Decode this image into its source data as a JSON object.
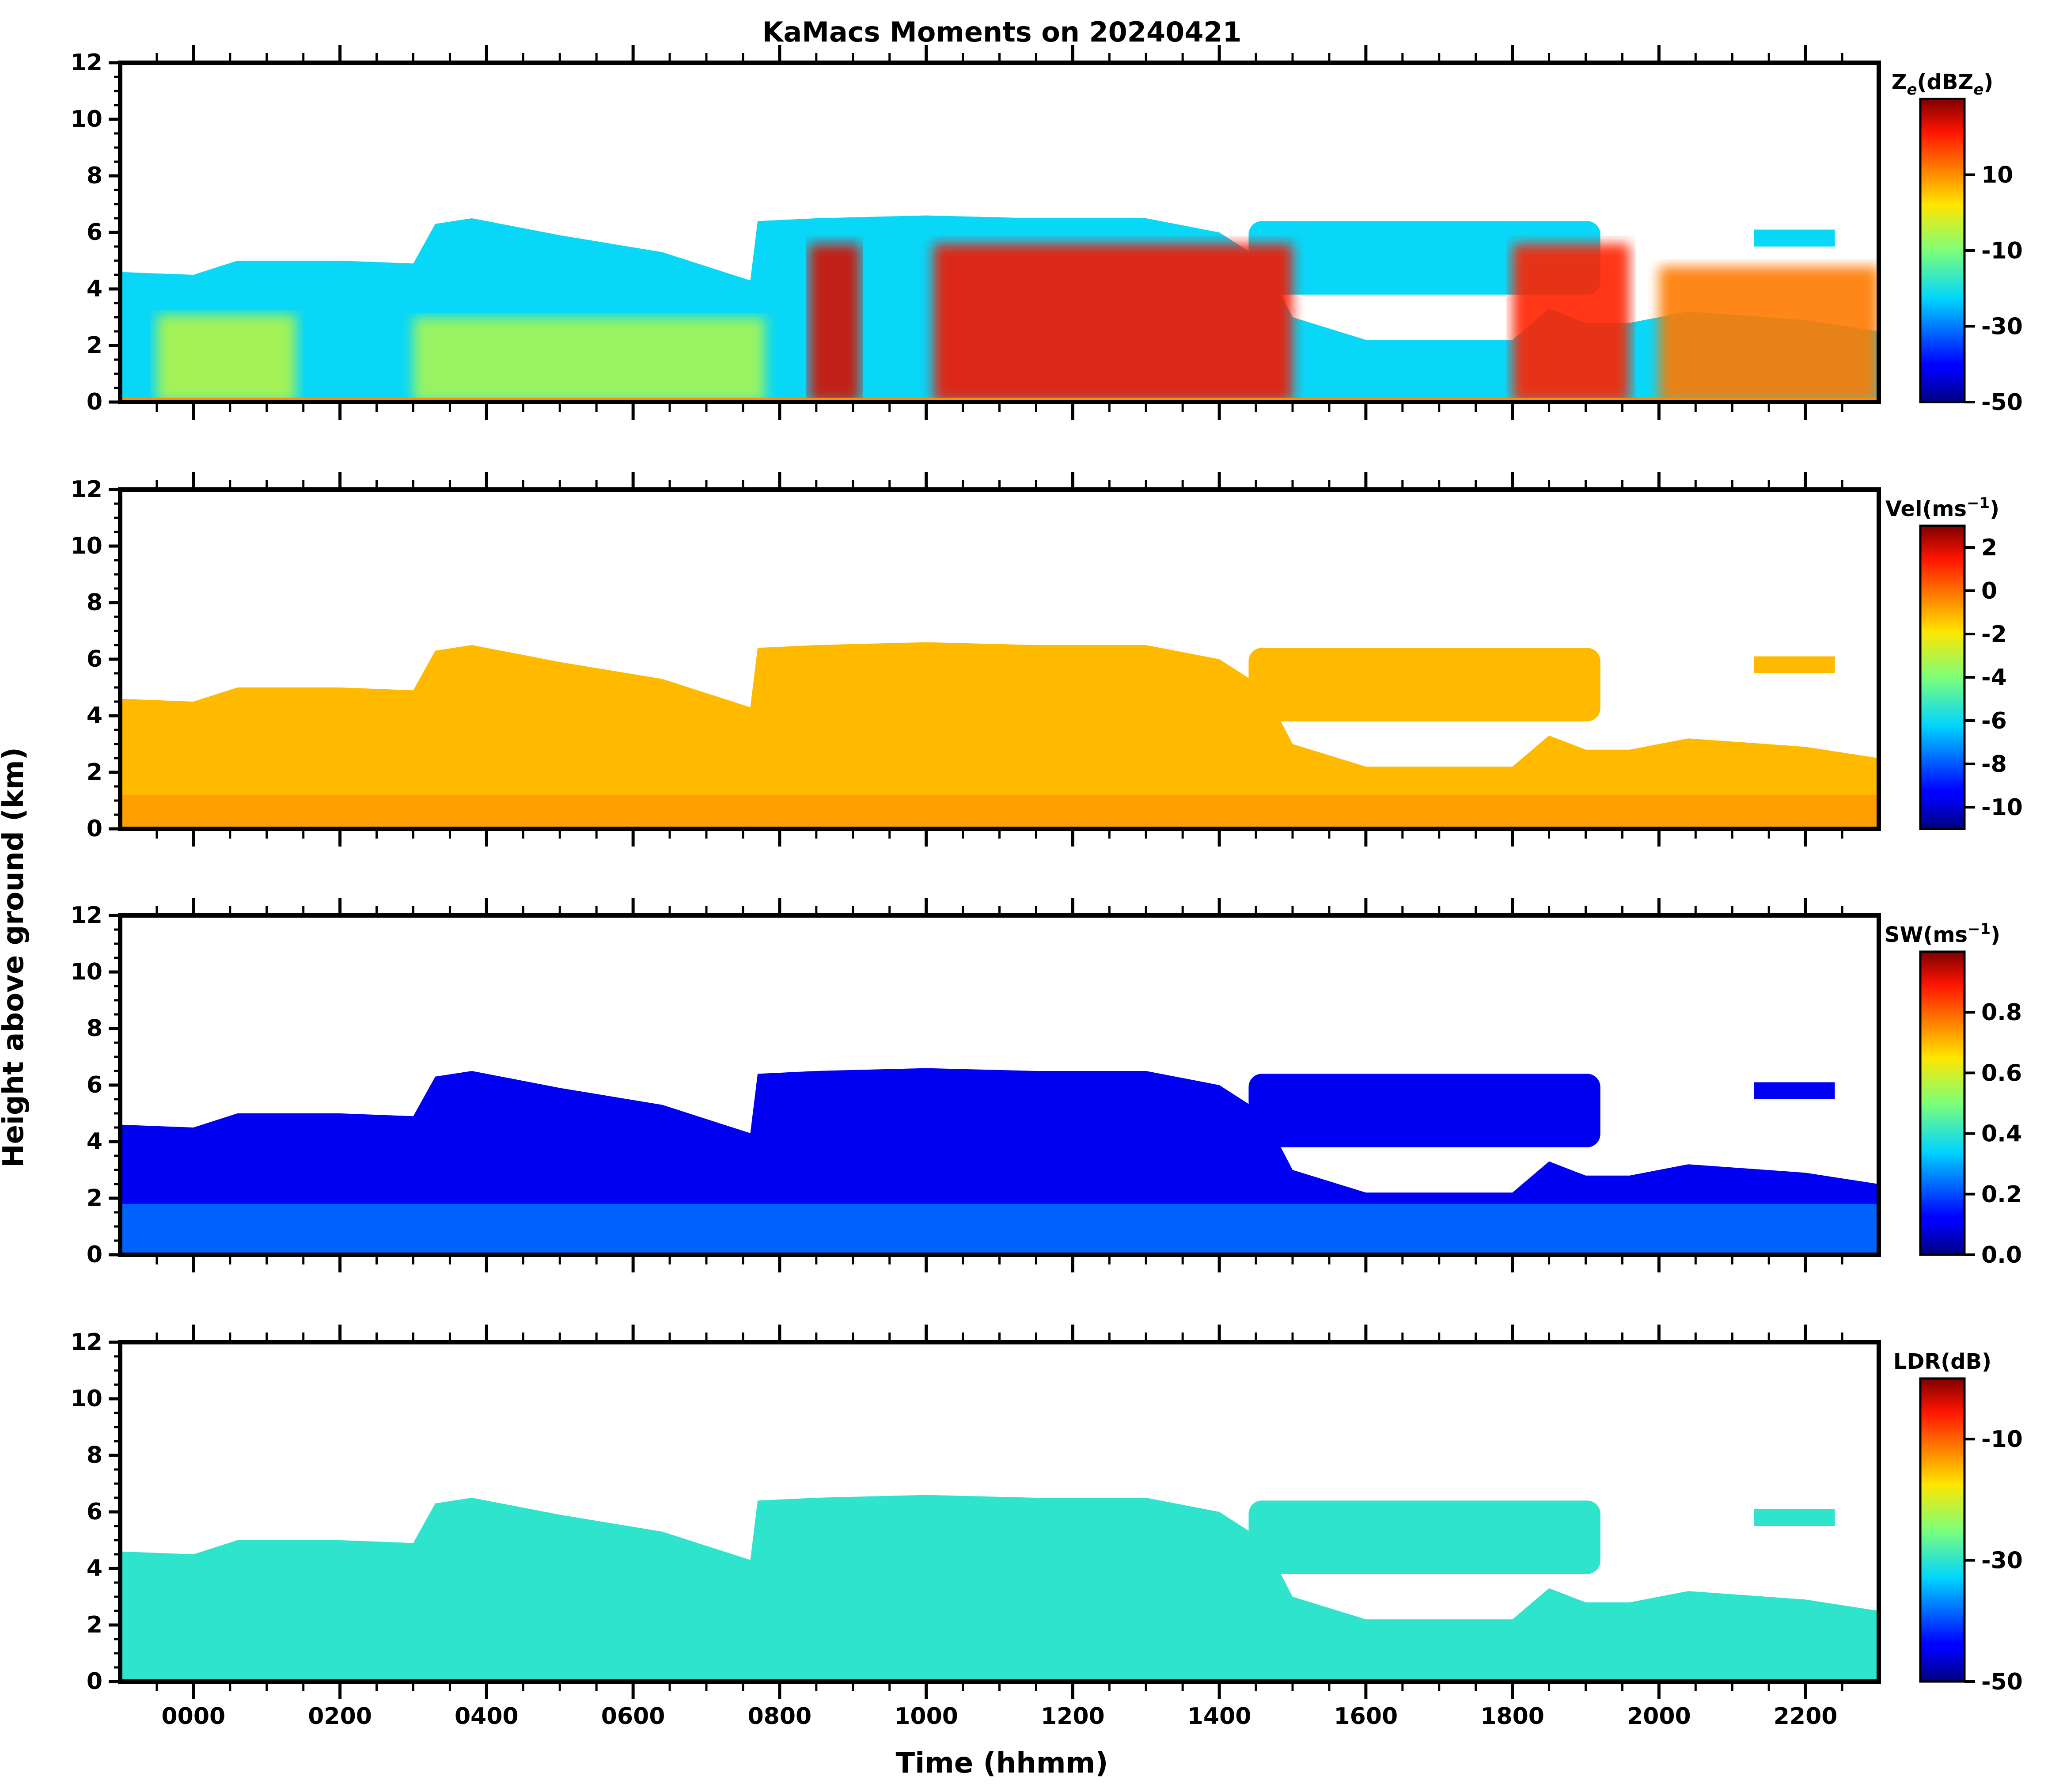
{
  "chart_data": {
    "type": "heatmap",
    "title": "KaMacs Moments on 20240421",
    "xlabel": "Time (hhmm)",
    "ylabel": "Height above ground (km)",
    "xlim": [
      -100,
      2300
    ],
    "x_ticks": [
      0,
      200,
      400,
      600,
      800,
      1000,
      1200,
      1400,
      1600,
      1800,
      2000,
      2200
    ],
    "x_tick_labels": [
      "0000",
      "0200",
      "0400",
      "0600",
      "0800",
      "1000",
      "1200",
      "1400",
      "1600",
      "1800",
      "2000",
      "2200"
    ],
    "ylim": [
      0,
      12
    ],
    "y_ticks": [
      0,
      2,
      4,
      6,
      8,
      10,
      12
    ],
    "y_tick_labels": [
      "0",
      "2",
      "4",
      "6",
      "8",
      "10",
      "12"
    ],
    "cloud_top_km": [
      [
        -100,
        4.6
      ],
      [
        0,
        4.5
      ],
      [
        60,
        5.0
      ],
      [
        200,
        5.0
      ],
      [
        300,
        4.9
      ],
      [
        330,
        6.3
      ],
      [
        380,
        6.5
      ],
      [
        500,
        5.9
      ],
      [
        640,
        5.3
      ],
      [
        760,
        4.3
      ],
      [
        770,
        6.4
      ],
      [
        850,
        6.5
      ],
      [
        1000,
        6.6
      ],
      [
        1150,
        6.5
      ],
      [
        1300,
        6.5
      ],
      [
        1400,
        6.0
      ],
      [
        1460,
        5.0
      ],
      [
        1500,
        3.0
      ],
      [
        1600,
        2.2
      ],
      [
        1700,
        2.2
      ],
      [
        1800,
        2.2
      ],
      [
        1850,
        3.3
      ],
      [
        1900,
        2.8
      ],
      [
        1960,
        2.8
      ],
      [
        2040,
        3.2
      ],
      [
        2200,
        2.9
      ],
      [
        2300,
        2.5
      ]
    ],
    "upper_layer_km": {
      "x": [
        1440,
        1920
      ],
      "top": 6.4,
      "base": 3.8
    },
    "isolated_echo": {
      "x": [
        2130,
        2240
      ],
      "height_km": 5.8
    },
    "panels": [
      {
        "variable": "Ze",
        "colorbar_label": "Z_e(dBZ_e)",
        "label_main": "Z",
        "label_sub": "e",
        "label_paren": "(dBZ",
        "label_paren_sub": "e",
        "label_close": ")",
        "clim": [
          -50,
          30
        ],
        "cbar_ticks": [
          10,
          -10,
          -30,
          -50
        ],
        "cbar_tick_labels": [
          "10",
          "-10",
          "-30",
          "-50"
        ],
        "cores": [
          {
            "x": [
              -50,
              140
            ],
            "level": -5
          },
          {
            "x": [
              300,
              780
            ],
            "level": -6
          },
          {
            "x": [
              840,
              910
            ],
            "level": 24
          },
          {
            "x": [
              1010,
              1500
            ],
            "level": 22
          },
          {
            "x": [
              1800,
              1960
            ],
            "level": 20
          },
          {
            "x": [
              2000,
              2300
            ],
            "level": 12
          }
        ]
      },
      {
        "variable": "Vel",
        "colorbar_label": "Vel(ms^-1)",
        "label_main": "Vel(ms",
        "label_sup": "−1",
        "label_close": ")",
        "clim": [
          -11,
          3
        ],
        "cbar_ticks": [
          2,
          0,
          -2,
          -4,
          -6,
          -8,
          -10
        ],
        "cbar_tick_labels": [
          "2",
          "0",
          "-2",
          "-4",
          "-6",
          "-8",
          "-10"
        ],
        "dominant_value": -1.2
      },
      {
        "variable": "SW",
        "colorbar_label": "SW(ms^-1)",
        "label_main": "SW(ms",
        "label_sup": "−1",
        "label_close": ")",
        "clim": [
          0.0,
          1.0
        ],
        "cbar_ticks": [
          0.8,
          0.6,
          0.4,
          0.2,
          0.0
        ],
        "cbar_tick_labels": [
          "0.8",
          "0.6",
          "0.4",
          "0.2",
          "0.0"
        ],
        "dominant_value": 0.1
      },
      {
        "variable": "LDR",
        "colorbar_label": "LDR(dB)",
        "label_main": "LDR(dB)",
        "clim": [
          -50,
          0
        ],
        "cbar_ticks": [
          -10,
          -30,
          -50
        ],
        "cbar_tick_labels": [
          "-10",
          "-30",
          "-50"
        ],
        "dominant_value": -30
      }
    ]
  }
}
